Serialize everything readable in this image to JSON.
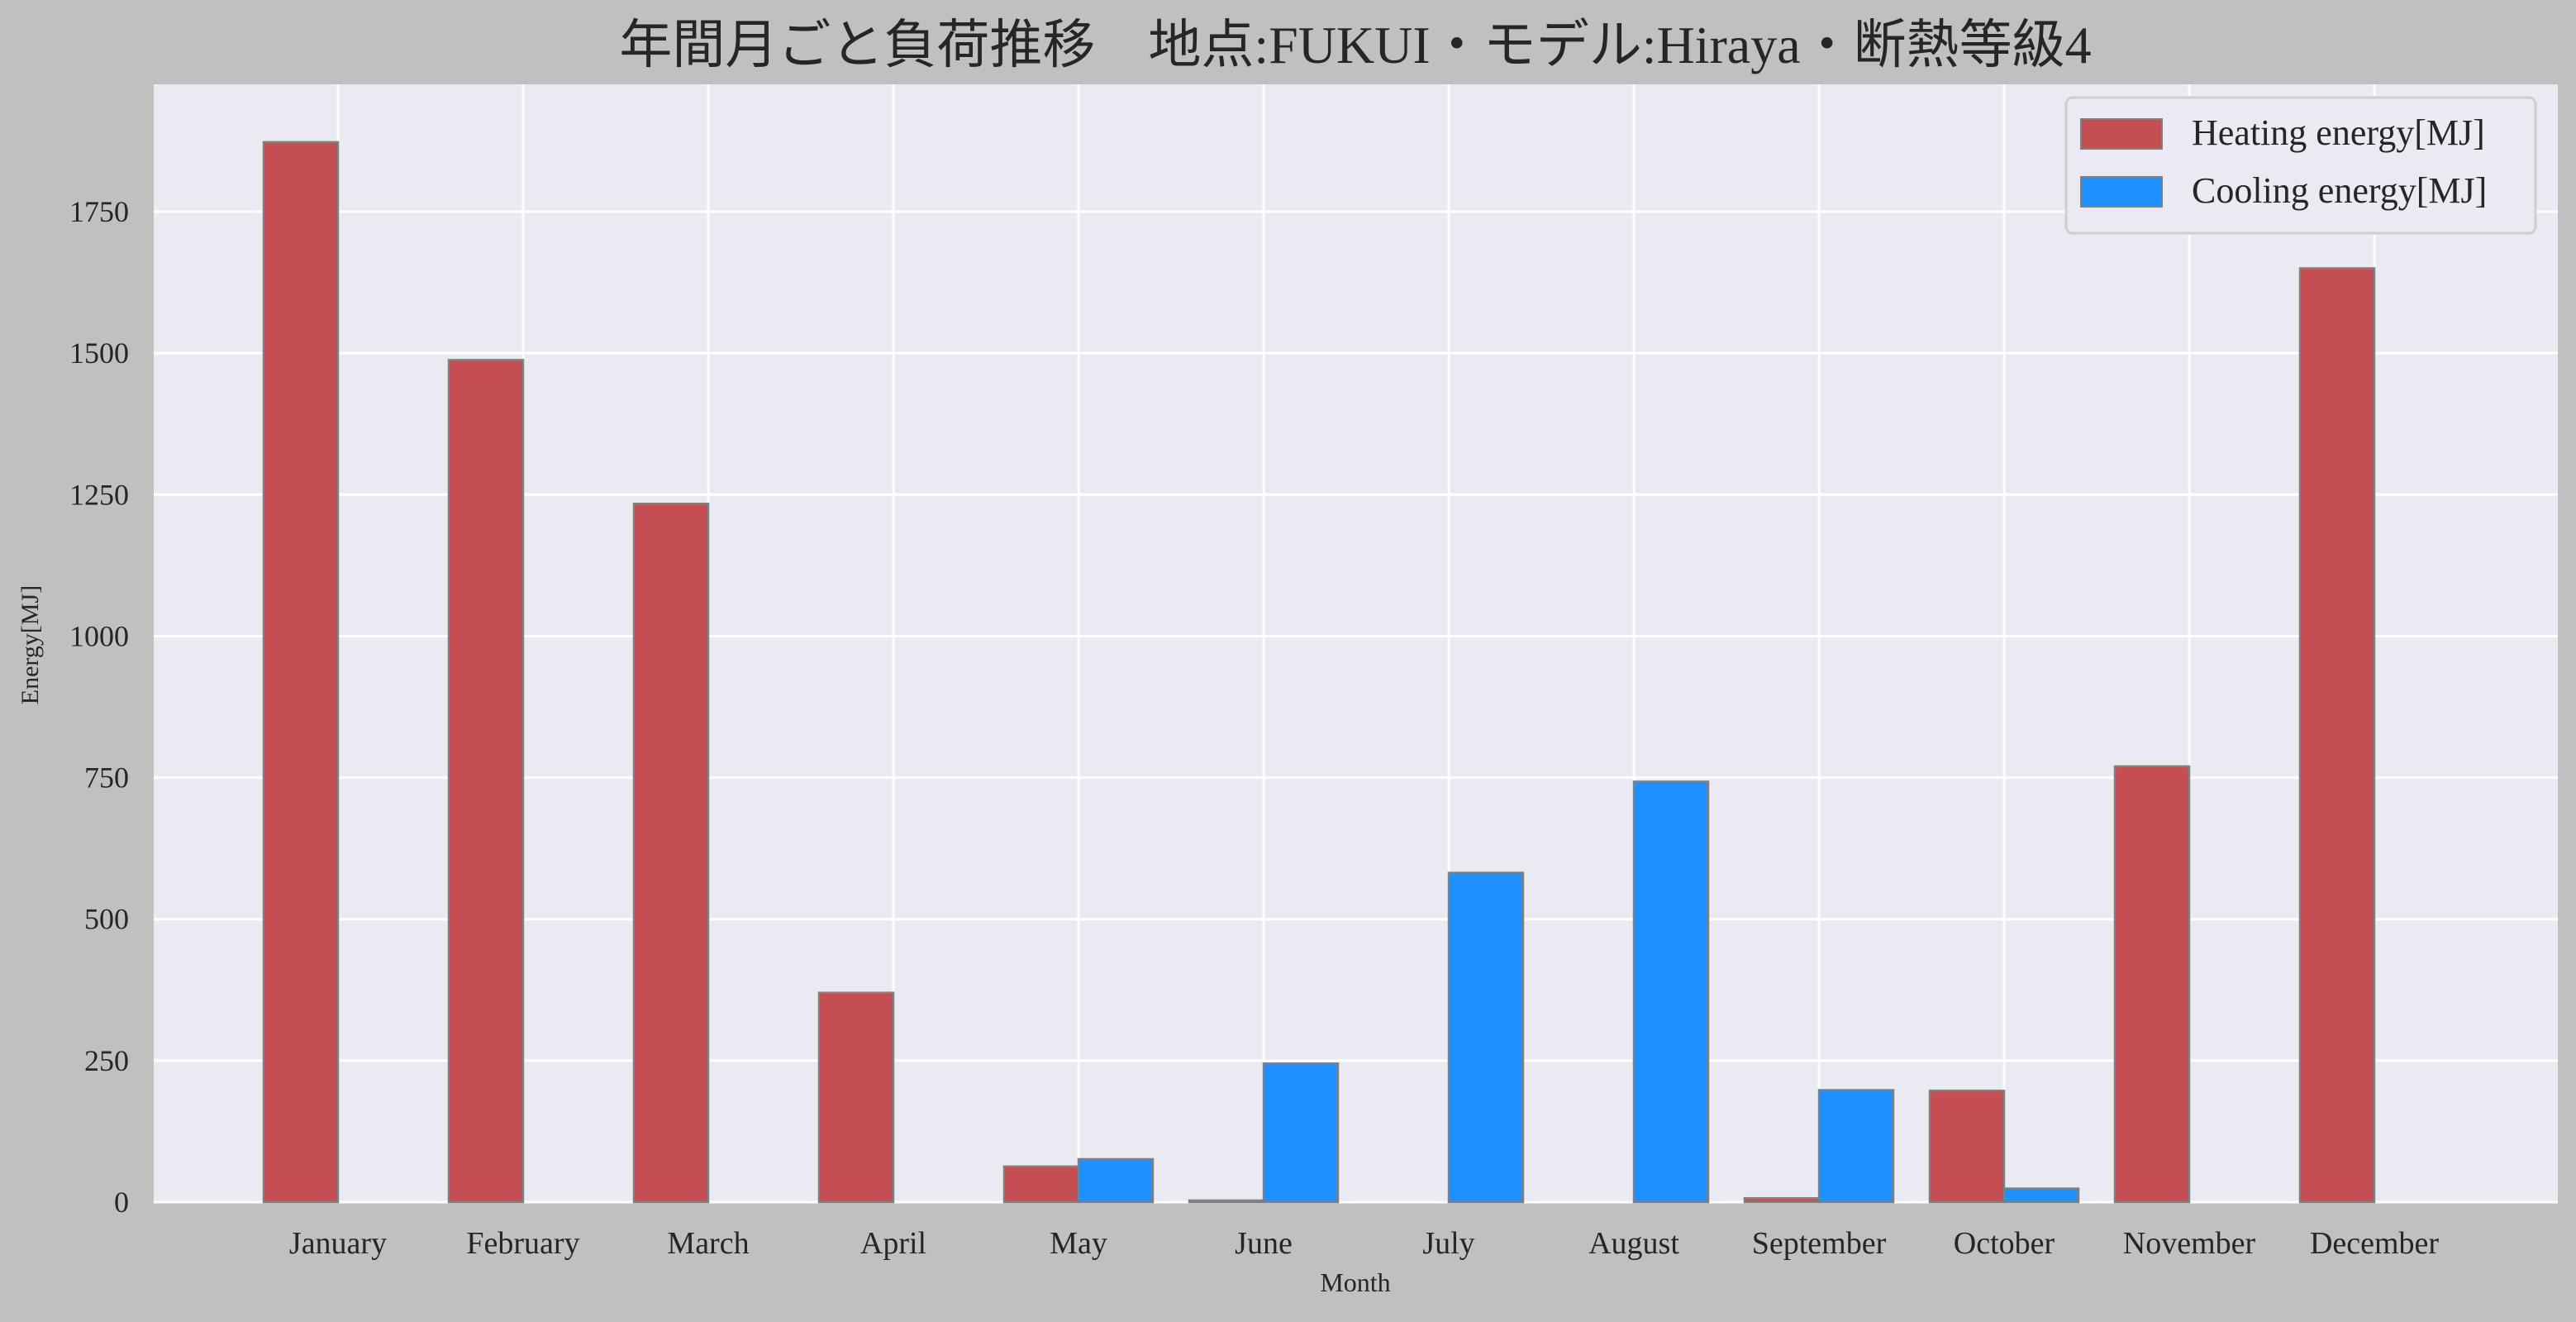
{
  "chart_data": {
    "type": "bar",
    "title": "年間月ごと負荷推移　地点:FUKUI・モデル:Hiraya・断熱等級4",
    "xlabel": "Month",
    "ylabel": "Energy[MJ]",
    "categories": [
      "January",
      "February",
      "March",
      "April",
      "May",
      "June",
      "July",
      "August",
      "September",
      "October",
      "November",
      "December"
    ],
    "series": [
      {
        "name": "Heating energy[MJ]",
        "color": "#c44e52",
        "values": [
          1873,
          1488,
          1234,
          370,
          63,
          3,
          0,
          0,
          7,
          197,
          770,
          1650
        ]
      },
      {
        "name": "Cooling energy[MJ]",
        "color": "#1e90ff",
        "values": [
          0,
          0,
          0,
          0,
          76,
          245,
          582,
          743,
          198,
          24,
          0,
          0
        ]
      }
    ],
    "ylim": [
      0,
      1975
    ],
    "yticks": [
      0,
      250,
      500,
      750,
      1000,
      1250,
      1500,
      1750
    ],
    "grid": true,
    "legend_position": "top-right",
    "colors": {
      "figure_background": "#c0c0c0",
      "plot_background": "#eaeaf2",
      "grid": "#ffffff",
      "bar_edge": "#808080"
    }
  }
}
